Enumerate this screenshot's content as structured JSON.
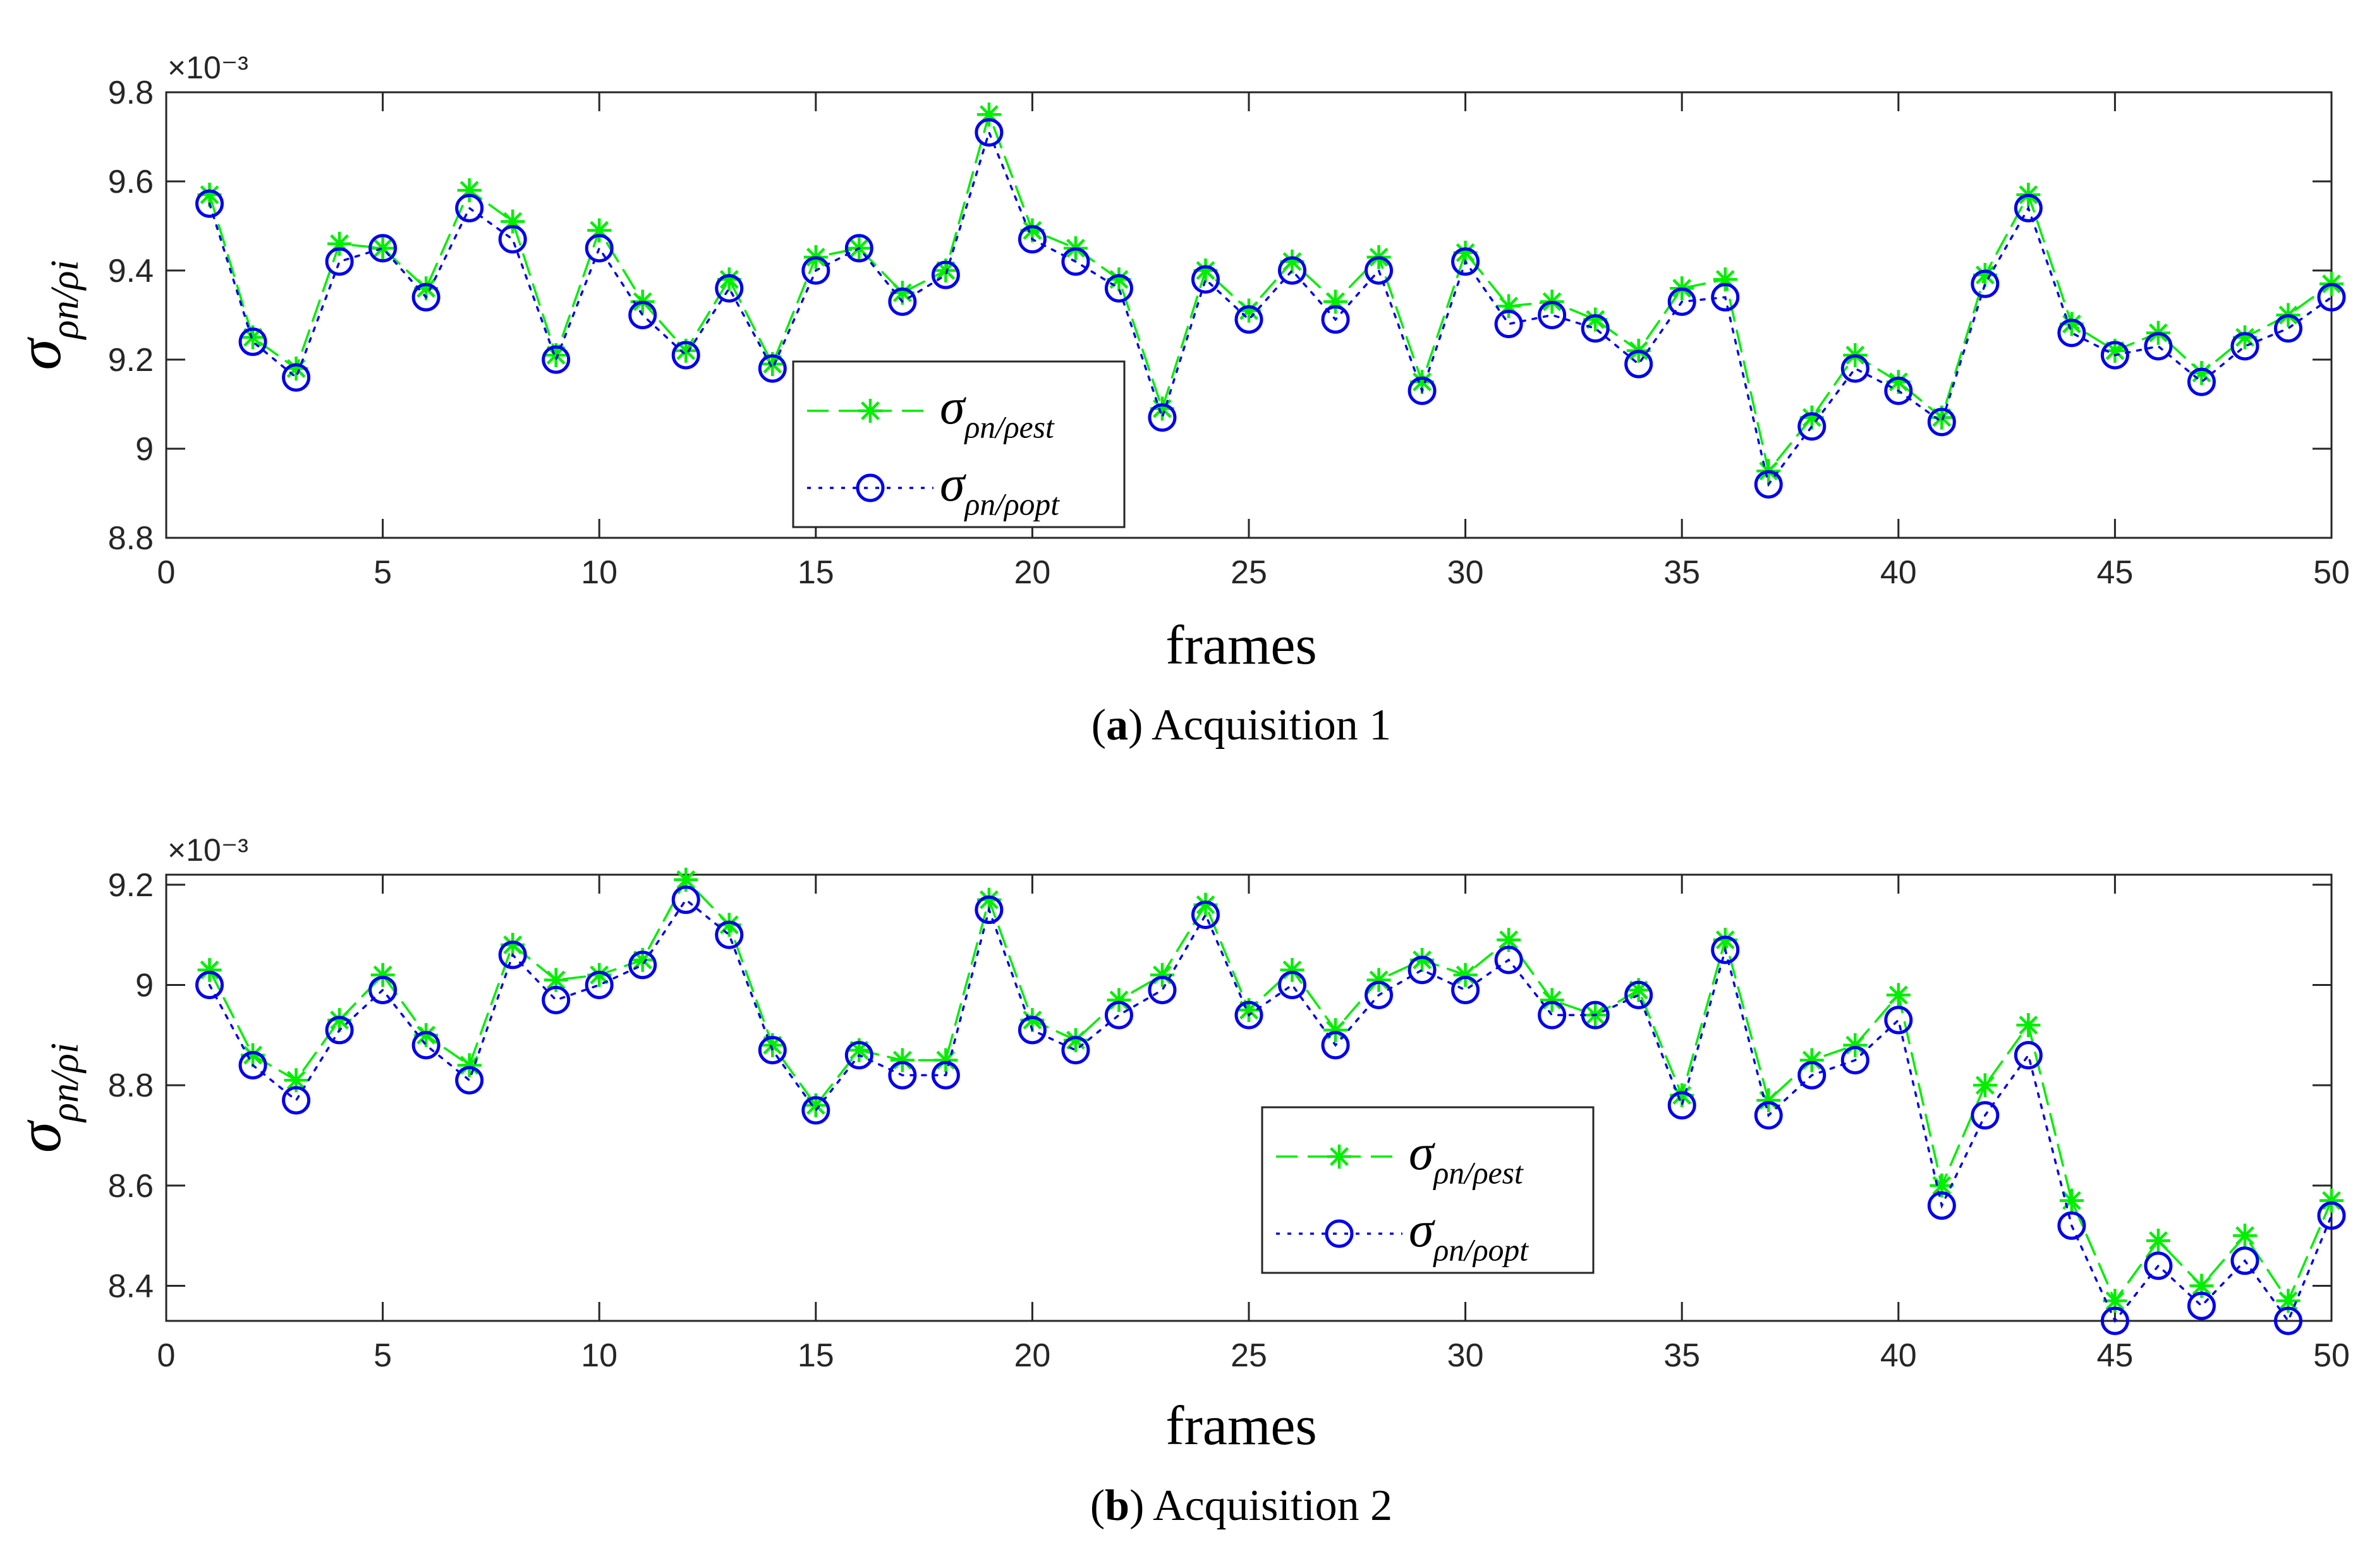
{
  "chart_data": [
    {
      "type": "line",
      "caption_letter": "a",
      "caption_text": "Acquisition 1",
      "xlabel": "frames",
      "ylabel_base": "σ",
      "ylabel_sub": "ρn/ρi",
      "exponent_label": "×10⁻³",
      "xlim": [
        0,
        50
      ],
      "ylim": [
        8.8,
        9.8
      ],
      "xticks": [
        0,
        5,
        10,
        15,
        20,
        25,
        30,
        35,
        40,
        45,
        50
      ],
      "yticks": [
        8.8,
        9,
        9.2,
        9.4,
        9.6,
        9.8
      ],
      "ytick_labels": [
        "8.8",
        "9",
        "9.2",
        "9.4",
        "9.6",
        "9.8"
      ],
      "legend_position": "center",
      "x": [
        1,
        2,
        3,
        4,
        5,
        6,
        7,
        8,
        9,
        10,
        11,
        12,
        13,
        14,
        15,
        16,
        17,
        18,
        19,
        20,
        21,
        22,
        23,
        24,
        25,
        26,
        27,
        28,
        29,
        30,
        31,
        32,
        33,
        34,
        35,
        36,
        37,
        38,
        39,
        40,
        41,
        42,
        43,
        44,
        45,
        46,
        47,
        48,
        49,
        50
      ],
      "series": [
        {
          "name": "σρn/ρest",
          "name_sub": "ρn/ρest",
          "color": "#00ee00",
          "marker": "asterisk",
          "line": "dashed",
          "values": [
            9.57,
            9.25,
            9.18,
            9.46,
            9.45,
            9.36,
            9.58,
            9.51,
            9.21,
            9.49,
            9.33,
            9.22,
            9.38,
            9.19,
            9.43,
            9.45,
            9.35,
            9.4,
            9.75,
            9.49,
            9.45,
            9.38,
            9.09,
            9.4,
            9.31,
            9.42,
            9.33,
            9.43,
            9.15,
            9.44,
            9.32,
            9.33,
            9.29,
            9.22,
            9.36,
            9.38,
            8.95,
            9.07,
            9.21,
            9.15,
            9.07,
            9.39,
            9.57,
            9.28,
            9.22,
            9.26,
            9.17,
            9.25,
            9.3,
            9.37
          ]
        },
        {
          "name": "σρn/ρopt",
          "name_sub": "ρn/ρopt",
          "color": "#0000ee",
          "marker": "circle",
          "line": "dotted",
          "values": [
            9.55,
            9.24,
            9.16,
            9.42,
            9.45,
            9.34,
            9.54,
            9.47,
            9.2,
            9.45,
            9.3,
            9.21,
            9.36,
            9.18,
            9.4,
            9.45,
            9.33,
            9.39,
            9.71,
            9.47,
            9.42,
            9.36,
            9.07,
            9.38,
            9.29,
            9.4,
            9.29,
            9.4,
            9.13,
            9.42,
            9.28,
            9.3,
            9.27,
            9.19,
            9.33,
            9.34,
            8.92,
            9.05,
            9.18,
            9.13,
            9.06,
            9.37,
            9.54,
            9.26,
            9.21,
            9.23,
            9.15,
            9.23,
            9.27,
            9.34
          ]
        }
      ]
    },
    {
      "type": "line",
      "caption_letter": "b",
      "caption_text": "Acquisition 2",
      "xlabel": "frames",
      "ylabel_base": "σ",
      "ylabel_sub": "ρn/ρi",
      "exponent_label": "×10⁻³",
      "xlim": [
        0,
        50
      ],
      "ylim": [
        8.33,
        9.22
      ],
      "xticks": [
        0,
        5,
        10,
        15,
        20,
        25,
        30,
        35,
        40,
        45,
        50
      ],
      "yticks": [
        8.4,
        8.6,
        8.8,
        9,
        9.2
      ],
      "ytick_labels": [
        "8.4",
        "8.6",
        "8.8",
        "9",
        "9.2"
      ],
      "legend_position": "lower-center-right",
      "x": [
        1,
        2,
        3,
        4,
        5,
        6,
        7,
        8,
        9,
        10,
        11,
        12,
        13,
        14,
        15,
        16,
        17,
        18,
        19,
        20,
        21,
        22,
        23,
        24,
        25,
        26,
        27,
        28,
        29,
        30,
        31,
        32,
        33,
        34,
        35,
        36,
        37,
        38,
        39,
        40,
        41,
        42,
        43,
        44,
        45,
        46,
        47,
        48,
        49,
        50
      ],
      "series": [
        {
          "name": "σρn/ρest",
          "name_sub": "ρn/ρest",
          "color": "#00ee00",
          "marker": "asterisk",
          "line": "dashed",
          "values": [
            9.03,
            8.86,
            8.81,
            8.93,
            9.02,
            8.9,
            8.84,
            9.08,
            9.01,
            9.02,
            9.05,
            9.21,
            9.12,
            8.88,
            8.76,
            8.87,
            8.85,
            8.85,
            9.17,
            8.93,
            8.89,
            8.97,
            9.02,
            9.16,
            8.95,
            9.03,
            8.91,
            9.01,
            9.05,
            9.02,
            9.09,
            8.97,
            8.94,
            8.99,
            8.78,
            9.09,
            8.77,
            8.85,
            8.88,
            8.98,
            8.6,
            8.8,
            8.92,
            8.57,
            8.37,
            8.49,
            8.4,
            8.5,
            8.37,
            8.57
          ]
        },
        {
          "name": "σρn/ρopt",
          "name_sub": "ρn/ρopt",
          "color": "#0000ee",
          "marker": "circle",
          "line": "dotted",
          "values": [
            9.0,
            8.84,
            8.77,
            8.91,
            8.99,
            8.88,
            8.81,
            9.06,
            8.97,
            9.0,
            9.04,
            9.17,
            9.1,
            8.87,
            8.75,
            8.86,
            8.82,
            8.82,
            9.15,
            8.91,
            8.87,
            8.94,
            8.99,
            9.14,
            8.94,
            9.0,
            8.88,
            8.98,
            9.03,
            8.99,
            9.05,
            8.94,
            8.94,
            8.98,
            8.76,
            9.07,
            8.74,
            8.82,
            8.85,
            8.93,
            8.56,
            8.74,
            8.86,
            8.52,
            8.33,
            8.44,
            8.36,
            8.45,
            8.33,
            8.54
          ]
        }
      ]
    }
  ]
}
